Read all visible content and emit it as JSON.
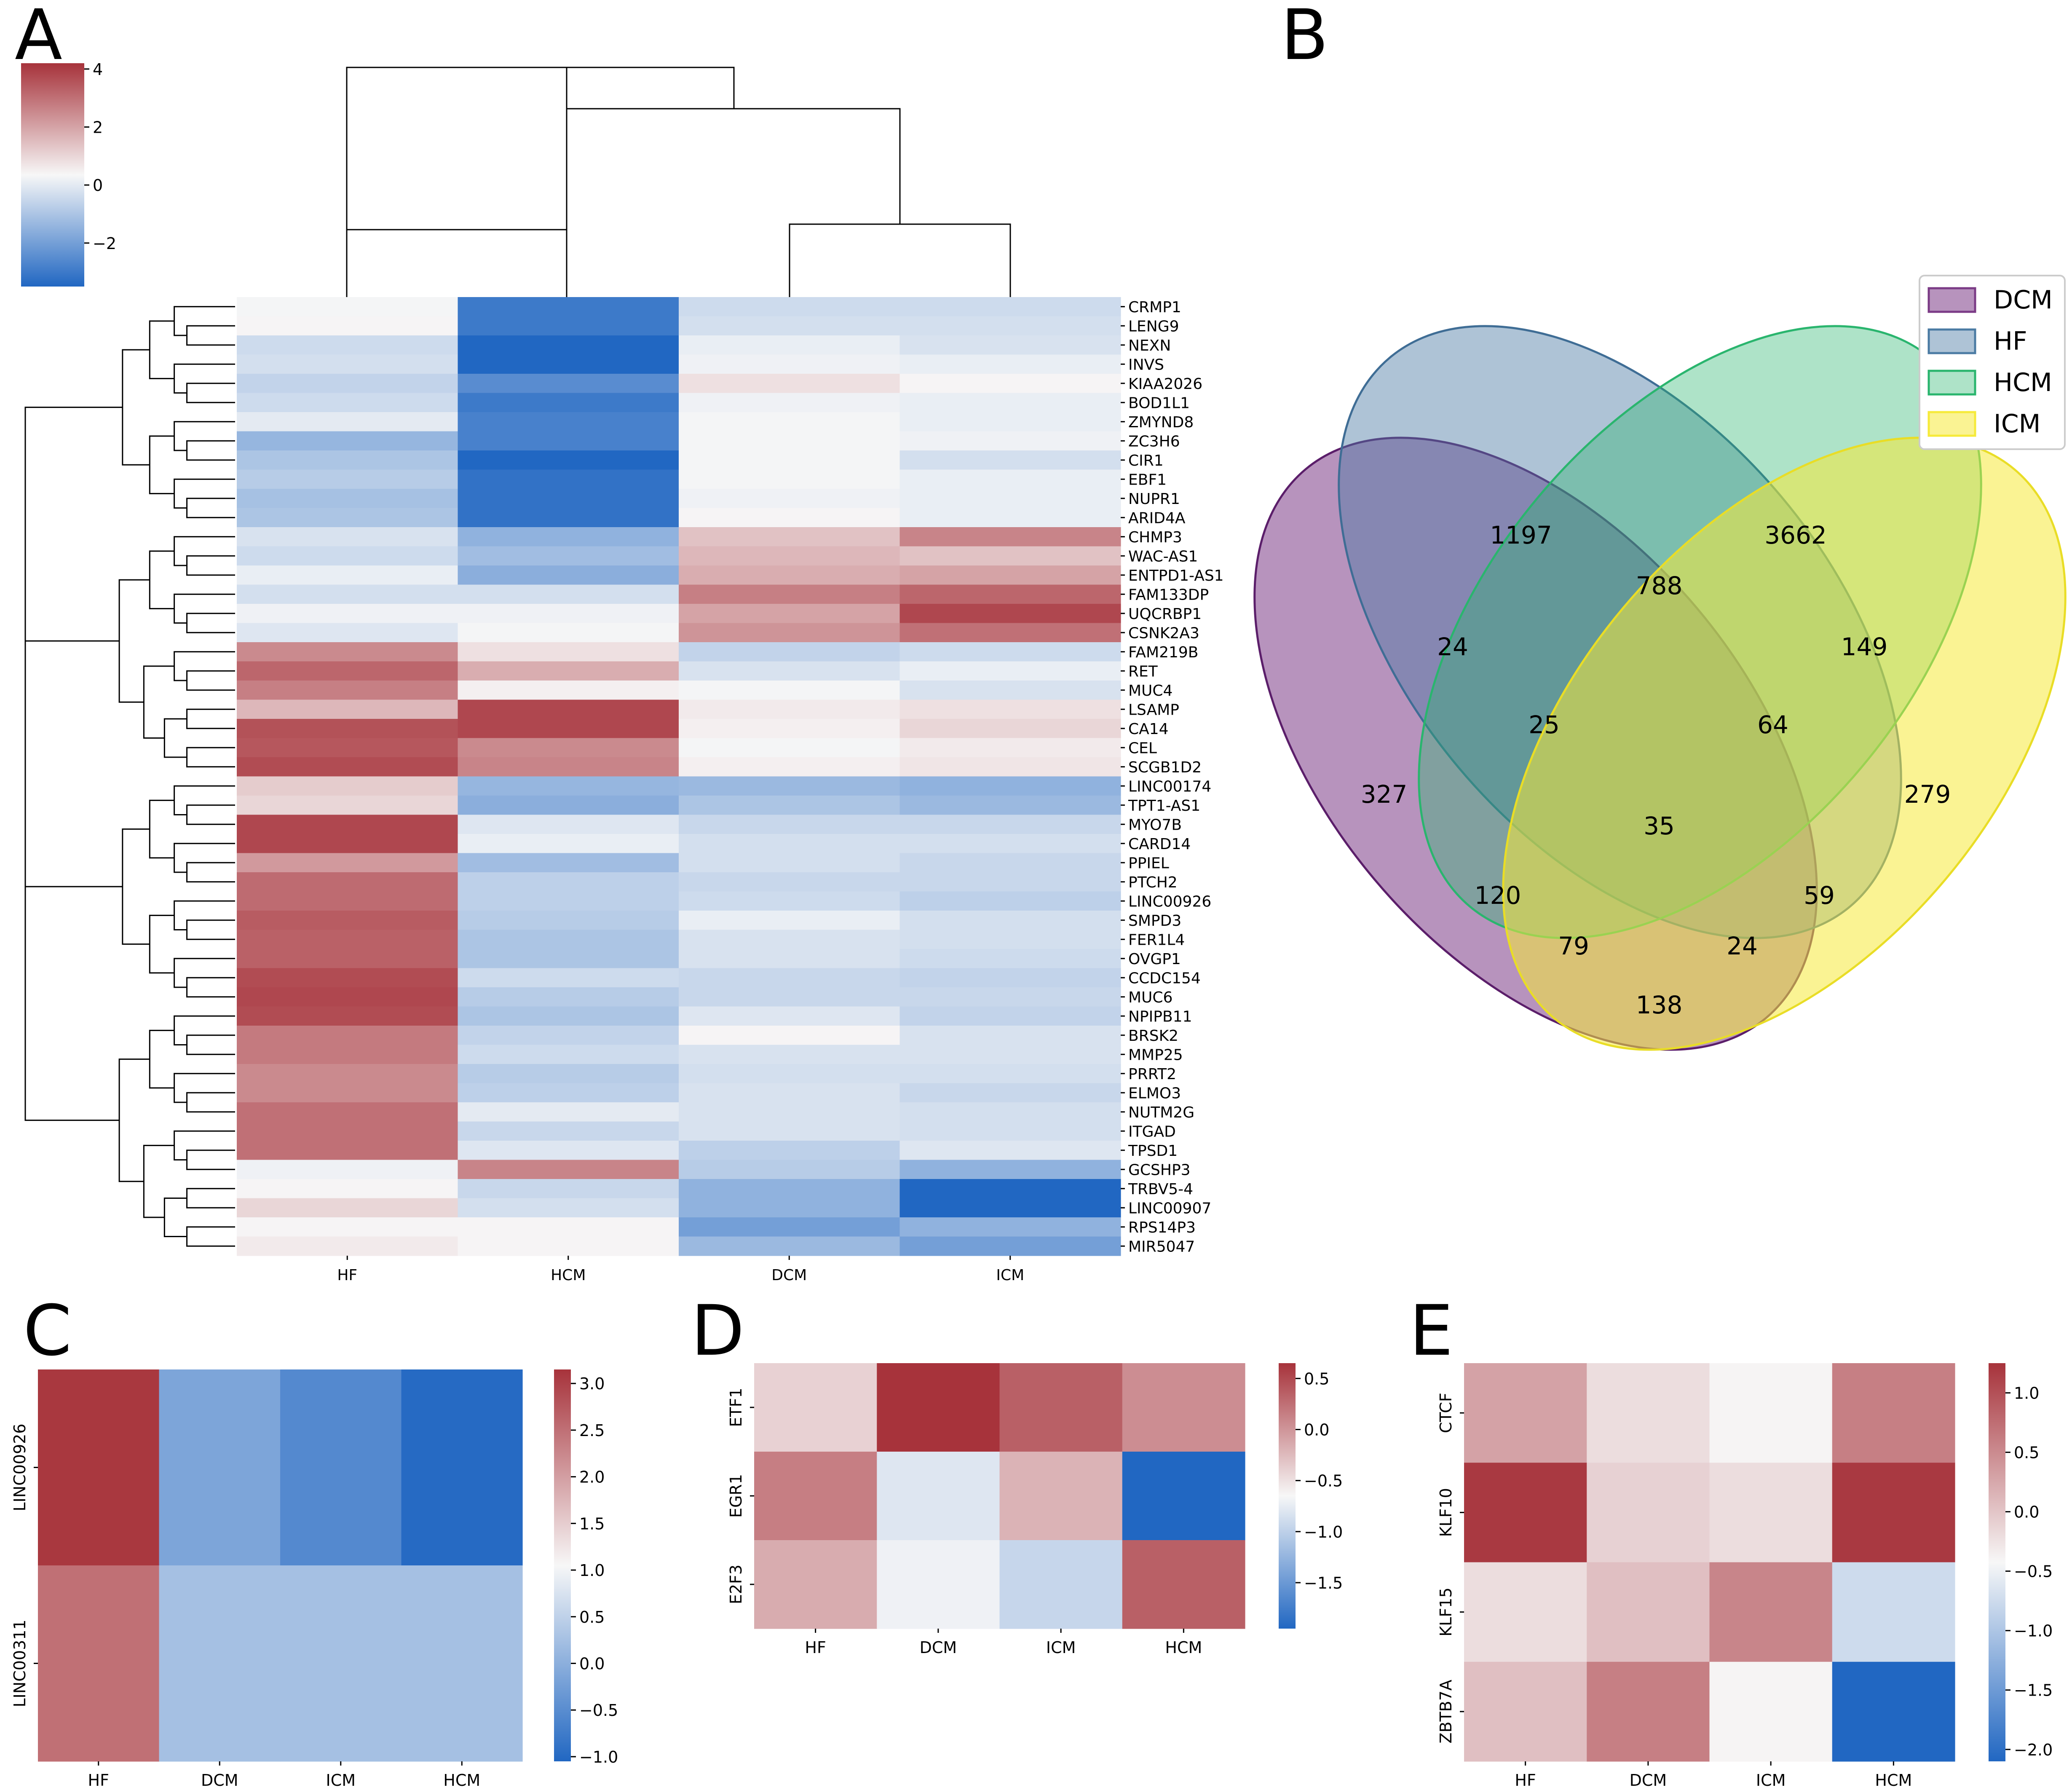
{
  "panels": {
    "A": "A",
    "B": "B",
    "C": "C",
    "D": "D",
    "E": "E"
  },
  "colors": {
    "low": "#2167c2",
    "mid": "#f7f7f7",
    "high": "#a7333b",
    "dcm": "#7b3b86",
    "hf": "#4b7ba3",
    "hcm": "#2ab56e",
    "icm": "#f6ea3a"
  },
  "chart_data": [
    {
      "id": "A",
      "type": "heatmap",
      "title": "",
      "columns": [
        "HF",
        "HCM",
        "DCM",
        "ICM"
      ],
      "rows": [
        "CRMP1",
        "LENG9",
        "NEXN",
        "INVS",
        "KIAA2026",
        "BOD1L1",
        "ZMYND8",
        "ZC3H6",
        "CIR1",
        "EBF1",
        "NUPR1",
        "ARID4A",
        "CHMP3",
        "WAC-AS1",
        "ENTPD1-AS1",
        "FAM133DP",
        "UQCRBP1",
        "CSNK2A3",
        "FAM219B",
        "RET",
        "MUC4",
        "LSAMP",
        "CA14",
        "CEL",
        "SCGB1D2",
        "LINC00174",
        "TPT1-AS1",
        "MYO7B",
        "CARD14",
        "PPIEL",
        "PTCH2",
        "LINC00926",
        "SMPD3",
        "FER1L4",
        "OVGP1",
        "CCDC154",
        "MUC6",
        "NPIPB11",
        "BRSK2",
        "MMP25",
        "PRRT2",
        "ELMO3",
        "NUTM2G",
        "ITGAD",
        "TPSD1",
        "GCSHP3",
        "TRBV5-4",
        "LINC00907",
        "RPS14P3",
        "MIR5047"
      ],
      "values": [
        [
          0.3,
          -3,
          -0.4,
          -0.4
        ],
        [
          0.4,
          -3,
          -0.3,
          -0.3
        ],
        [
          -0.4,
          -4,
          0.1,
          -0.2
        ],
        [
          -0.3,
          -4,
          0.2,
          0.1
        ],
        [
          -0.6,
          -2.5,
          0.8,
          0.4
        ],
        [
          -0.4,
          -3,
          0.2,
          0.1
        ],
        [
          0,
          -2.8,
          0.3,
          0.1
        ],
        [
          -1.4,
          -2.8,
          0.3,
          0.2
        ],
        [
          -1.0,
          -3.5,
          0.3,
          -0.3
        ],
        [
          -0.8,
          -3.2,
          0.3,
          0.1
        ],
        [
          -1.1,
          -3.2,
          0.2,
          0.1
        ],
        [
          -1.0,
          -3.2,
          0.4,
          0.1
        ],
        [
          -0.2,
          -1.5,
          1.4,
          2.6
        ],
        [
          -0.4,
          -1.2,
          1.6,
          1.4
        ],
        [
          0.1,
          -1.6,
          1.8,
          2.0
        ],
        [
          -0.3,
          -0.3,
          2.7,
          3.2
        ],
        [
          0.2,
          0.2,
          2.0,
          3.8
        ],
        [
          -0.1,
          0.3,
          2.3,
          3.0
        ],
        [
          2.5,
          0.8,
          -0.6,
          -0.4
        ],
        [
          3.2,
          1.8,
          -0.2,
          0.1
        ],
        [
          2.7,
          0.5,
          0.3,
          -0.2
        ],
        [
          1.6,
          3.8,
          0.6,
          0.8
        ],
        [
          3.6,
          3.8,
          0.5,
          1.0
        ],
        [
          3.5,
          2.5,
          0.3,
          0.6
        ],
        [
          3.7,
          2.6,
          0.5,
          0.7
        ],
        [
          1.2,
          -1.4,
          -1.3,
          -1.5
        ],
        [
          1.0,
          -1.6,
          -1.0,
          -1.3
        ],
        [
          3.8,
          -0.1,
          -0.5,
          -0.5
        ],
        [
          3.8,
          0.1,
          -0.3,
          -0.3
        ],
        [
          2.2,
          -1.2,
          -0.3,
          -0.5
        ],
        [
          3.1,
          -0.7,
          -0.5,
          -0.5
        ],
        [
          3.1,
          -0.7,
          -0.4,
          -0.7
        ],
        [
          3.4,
          -0.8,
          0.1,
          -0.3
        ],
        [
          3.3,
          -1.0,
          -0.2,
          -0.3
        ],
        [
          3.3,
          -1.0,
          -0.2,
          -0.4
        ],
        [
          3.7,
          -0.4,
          -0.5,
          -0.6
        ],
        [
          3.8,
          -0.8,
          -0.5,
          -0.5
        ],
        [
          3.7,
          -1.0,
          -0.1,
          -0.6
        ],
        [
          2.8,
          -0.6,
          0.4,
          -0.2
        ],
        [
          2.8,
          -0.4,
          -0.2,
          -0.2
        ],
        [
          2.5,
          -0.8,
          -0.3,
          -0.3
        ],
        [
          2.5,
          -0.7,
          -0.2,
          -0.5
        ],
        [
          3.0,
          0.0,
          -0.2,
          -0.3
        ],
        [
          3.0,
          -0.5,
          -0.2,
          -0.3
        ],
        [
          3.0,
          -0.1,
          -0.7,
          -0.1
        ],
        [
          0.2,
          2.6,
          -0.8,
          -1.5
        ],
        [
          0.4,
          -0.5,
          -1.5,
          -4.0
        ],
        [
          1.0,
          -0.3,
          -1.5,
          -4.0
        ],
        [
          0.4,
          0.4,
          -2.0,
          -1.5
        ],
        [
          0.6,
          0.4,
          -1.3,
          -2.0
        ]
      ],
      "colorbar": {
        "range": [
          -3.5,
          4.2
        ],
        "ticks": [
          4,
          2,
          0,
          -2
        ],
        "tick_labels": [
          "4",
          "2",
          "0",
          "−2"
        ]
      }
    },
    {
      "id": "B",
      "type": "venn",
      "sets": [
        "DCM",
        "HF",
        "HCM",
        "ICM"
      ],
      "regions": [
        {
          "sets": [
            "DCM"
          ],
          "count": 327
        },
        {
          "sets": [
            "HF"
          ],
          "count": 1197
        },
        {
          "sets": [
            "HCM"
          ],
          "count": 3662
        },
        {
          "sets": [
            "ICM"
          ],
          "count": 279
        },
        {
          "sets": [
            "DCM",
            "HF"
          ],
          "count": 24
        },
        {
          "sets": [
            "HF",
            "HCM"
          ],
          "count": 788
        },
        {
          "sets": [
            "HCM",
            "ICM"
          ],
          "count": 149
        },
        {
          "sets": [
            "DCM",
            "HF",
            "HCM"
          ],
          "count": 25
        },
        {
          "sets": [
            "HF",
            "HCM",
            "ICM"
          ],
          "count": 64
        },
        {
          "sets": [
            "DCM",
            "HF",
            "HCM",
            "ICM"
          ],
          "count": 35
        },
        {
          "sets": [
            "DCM",
            "HCM"
          ],
          "count": 120
        },
        {
          "sets": [
            "HF",
            "ICM"
          ],
          "count": 59
        },
        {
          "sets": [
            "DCM",
            "HCM",
            "ICM"
          ],
          "count": 79
        },
        {
          "sets": [
            "DCM",
            "HF",
            "ICM"
          ],
          "count": 24
        },
        {
          "sets": [
            "DCM",
            "ICM"
          ],
          "count": 138
        }
      ],
      "legend": [
        "DCM",
        "HF",
        "HCM",
        "ICM"
      ],
      "legend_position": "top-right"
    },
    {
      "id": "C",
      "type": "heatmap",
      "columns": [
        "HF",
        "DCM",
        "ICM",
        "HCM"
      ],
      "rows": [
        "LINC00926",
        "LINC00311"
      ],
      "values": [
        [
          3.1,
          -0.15,
          -0.55,
          -1.0
        ],
        [
          2.5,
          0.25,
          0.25,
          0.25
        ]
      ],
      "colorbar": {
        "range": [
          -1.05,
          3.15
        ],
        "ticks": [
          3.0,
          2.5,
          2.0,
          1.5,
          1.0,
          0.5,
          0.0,
          -0.5,
          -1.0
        ],
        "tick_labels": [
          "3.0",
          "2.5",
          "2.0",
          "1.5",
          "1.0",
          "0.5",
          "0.0",
          "−0.5",
          "−1.0"
        ]
      }
    },
    {
      "id": "D",
      "type": "heatmap",
      "columns": [
        "HF",
        "DCM",
        "ICM",
        "HCM"
      ],
      "rows": [
        "ETF1",
        "EGR1",
        "E2F3"
      ],
      "values": [
        [
          -0.4,
          0.65,
          0.35,
          0.05
        ],
        [
          0.15,
          -0.8,
          -0.2,
          -1.95
        ],
        [
          -0.15,
          -0.7,
          -0.95,
          0.35
        ]
      ],
      "colorbar": {
        "range": [
          -1.95,
          0.65
        ],
        "ticks": [
          0.5,
          0.0,
          -0.5,
          -1.0,
          -1.5
        ],
        "tick_labels": [
          "0.5",
          "0.0",
          "−0.5",
          "−1.0",
          "−1.5"
        ]
      }
    },
    {
      "id": "E",
      "type": "heatmap",
      "columns": [
        "HF",
        "DCM",
        "ICM",
        "HCM"
      ],
      "rows": [
        "CTCF",
        "KLF10",
        "KLF15",
        "ZBTB7A"
      ],
      "values": [
        [
          0.3,
          -0.2,
          -0.4,
          0.6
        ],
        [
          1.2,
          -0.1,
          -0.2,
          1.2
        ],
        [
          -0.2,
          0.05,
          0.55,
          -0.75
        ],
        [
          0.05,
          0.6,
          -0.4,
          -2.1
        ]
      ],
      "colorbar": {
        "range": [
          -2.1,
          1.25
        ],
        "ticks": [
          1.0,
          0.5,
          0.0,
          -0.5,
          -1.0,
          -1.5,
          -2.0
        ],
        "tick_labels": [
          "1.0",
          "0.5",
          "0.0",
          "−0.5",
          "−1.0",
          "−1.5",
          "−2.0"
        ]
      }
    }
  ]
}
